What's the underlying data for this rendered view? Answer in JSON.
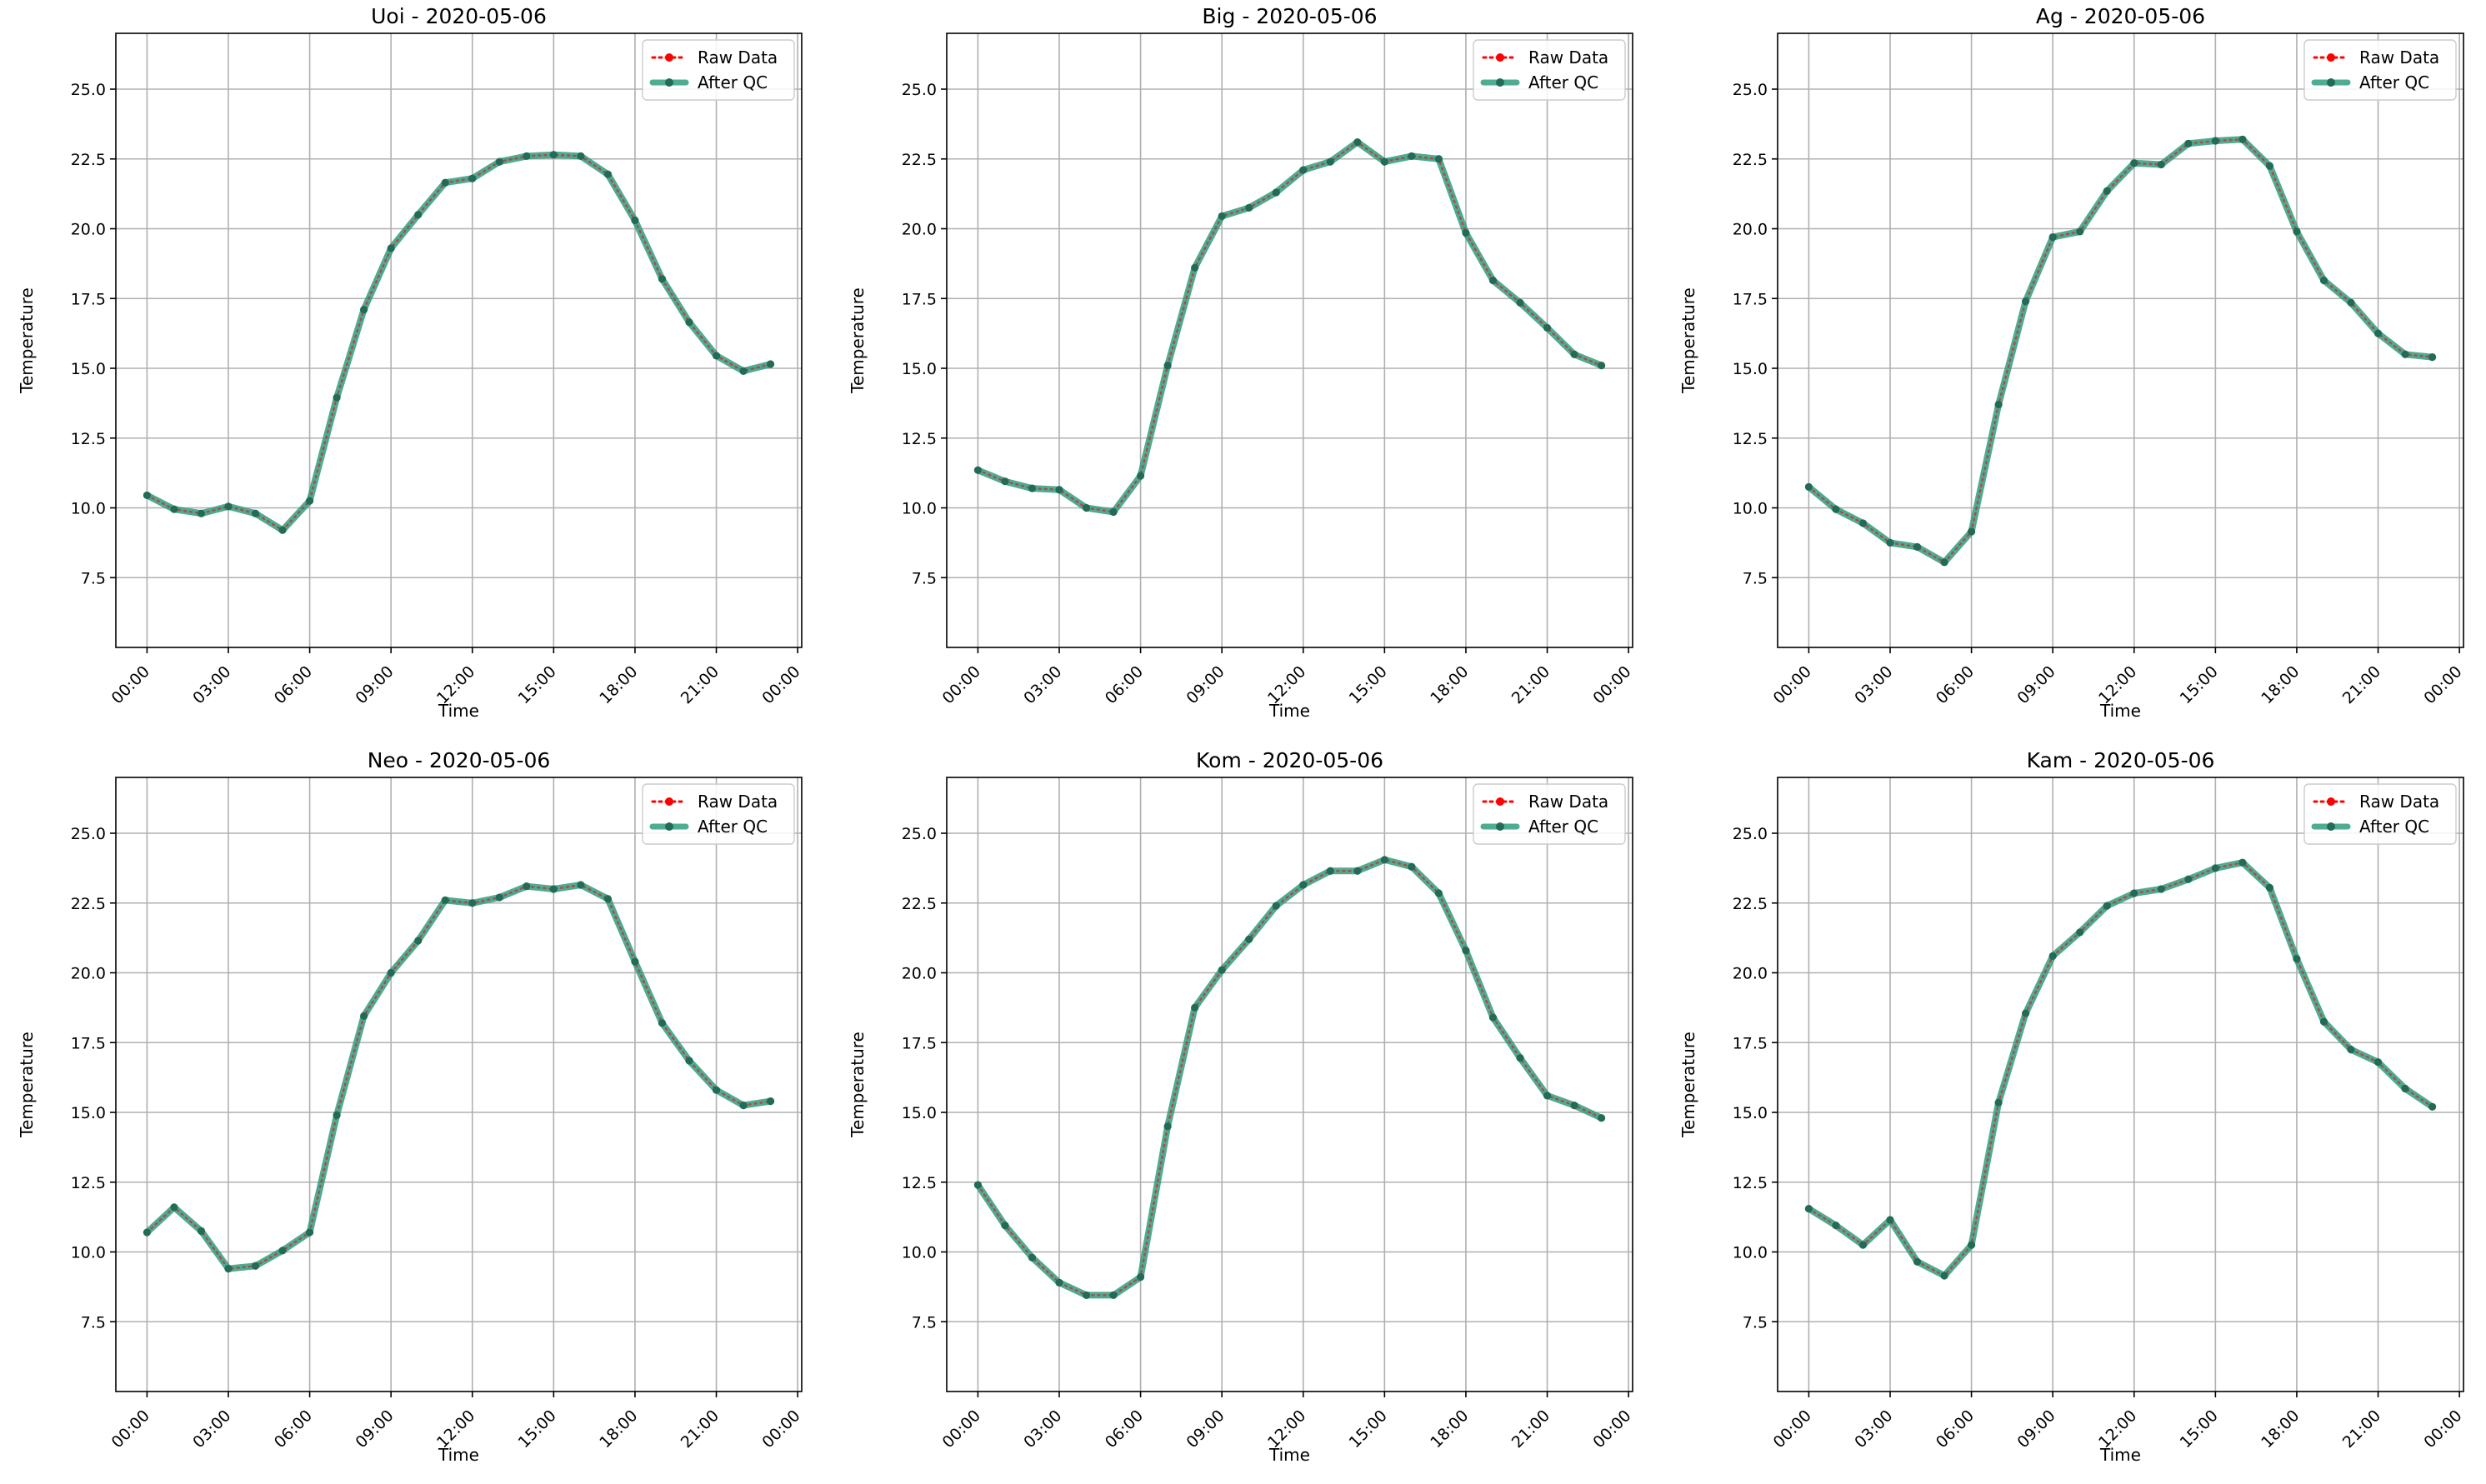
{
  "colors": {
    "raw": "#ff0000",
    "qc": "#2e9e80",
    "qc_marker": "#236b58",
    "grid": "#b0b0b0",
    "axes": "#000000",
    "legend_frame": "#cccccc"
  },
  "legend": {
    "raw_label": "Raw Data",
    "qc_label": "After QC"
  },
  "chart_data": [
    {
      "type": "line",
      "title": "Uoi - 2020-05-06",
      "xlabel": "Time",
      "ylabel": "Temperature",
      "x_hours": [
        0,
        1,
        2,
        3,
        4,
        5,
        6,
        7,
        8,
        9,
        10,
        11,
        12,
        13,
        14,
        15,
        16,
        17,
        18,
        19,
        20,
        21,
        22,
        23
      ],
      "xlim": [
        -1.15,
        24.15
      ],
      "ylim": [
        5.0,
        27.0
      ],
      "xticks": [
        "00:00",
        "03:00",
        "06:00",
        "09:00",
        "12:00",
        "15:00",
        "18:00",
        "21:00",
        "00:00"
      ],
      "yticks": [
        "7.5",
        "10.0",
        "12.5",
        "15.0",
        "17.5",
        "20.0",
        "22.5",
        "25.0"
      ],
      "grid": true,
      "legend_position": "upper right",
      "series": [
        {
          "name": "Raw Data",
          "values": [
            10.45,
            9.95,
            9.8,
            10.05,
            9.8,
            9.2,
            10.25,
            13.95,
            17.1,
            19.3,
            20.5,
            21.65,
            21.8,
            22.4,
            22.6,
            22.65,
            22.6,
            21.95,
            20.3,
            18.2,
            16.65,
            15.45,
            14.9,
            15.15
          ]
        },
        {
          "name": "After QC",
          "values": [
            10.45,
            9.95,
            9.8,
            10.05,
            9.8,
            9.2,
            10.25,
            13.95,
            17.1,
            19.3,
            20.5,
            21.65,
            21.8,
            22.4,
            22.6,
            22.65,
            22.6,
            21.95,
            20.3,
            18.2,
            16.65,
            15.45,
            14.9,
            15.15
          ]
        }
      ]
    },
    {
      "type": "line",
      "title": "Big - 2020-05-06",
      "xlabel": "Time",
      "ylabel": "Temperature",
      "x_hours": [
        0,
        1,
        2,
        3,
        4,
        5,
        6,
        7,
        8,
        9,
        10,
        11,
        12,
        13,
        14,
        15,
        16,
        17,
        18,
        19,
        20,
        21,
        22,
        23
      ],
      "xlim": [
        -1.15,
        24.15
      ],
      "ylim": [
        5.0,
        27.0
      ],
      "xticks": [
        "00:00",
        "03:00",
        "06:00",
        "09:00",
        "12:00",
        "15:00",
        "18:00",
        "21:00",
        "00:00"
      ],
      "yticks": [
        "7.5",
        "10.0",
        "12.5",
        "15.0",
        "17.5",
        "20.0",
        "22.5",
        "25.0"
      ],
      "grid": true,
      "legend_position": "upper right",
      "series": [
        {
          "name": "Raw Data",
          "values": [
            11.35,
            10.95,
            10.7,
            10.65,
            10.0,
            9.85,
            11.15,
            15.1,
            18.6,
            20.45,
            20.75,
            21.3,
            22.1,
            22.4,
            23.1,
            22.4,
            22.6,
            22.5,
            19.85,
            18.15,
            17.35,
            16.45,
            15.5,
            15.1
          ]
        },
        {
          "name": "After QC",
          "values": [
            11.35,
            10.95,
            10.7,
            10.65,
            10.0,
            9.85,
            11.15,
            15.1,
            18.6,
            20.45,
            20.75,
            21.3,
            22.1,
            22.4,
            23.1,
            22.4,
            22.6,
            22.5,
            19.85,
            18.15,
            17.35,
            16.45,
            15.5,
            15.1
          ]
        }
      ]
    },
    {
      "type": "line",
      "title": "Ag - 2020-05-06",
      "xlabel": "Time",
      "ylabel": "Temperature",
      "x_hours": [
        0,
        1,
        2,
        3,
        4,
        5,
        6,
        7,
        8,
        9,
        10,
        11,
        12,
        13,
        14,
        15,
        16,
        17,
        18,
        19,
        20,
        21,
        22,
        23
      ],
      "xlim": [
        -1.15,
        24.15
      ],
      "ylim": [
        5.0,
        27.0
      ],
      "xticks": [
        "00:00",
        "03:00",
        "06:00",
        "09:00",
        "12:00",
        "15:00",
        "18:00",
        "21:00",
        "00:00"
      ],
      "yticks": [
        "7.5",
        "10.0",
        "12.5",
        "15.0",
        "17.5",
        "20.0",
        "22.5",
        "25.0"
      ],
      "grid": true,
      "legend_position": "upper right",
      "series": [
        {
          "name": "Raw Data",
          "values": [
            10.75,
            9.95,
            9.45,
            8.75,
            8.6,
            8.05,
            9.15,
            13.7,
            17.4,
            19.7,
            19.9,
            21.35,
            22.35,
            22.3,
            23.05,
            23.15,
            23.2,
            22.25,
            19.9,
            18.15,
            17.35,
            16.25,
            15.5,
            15.4
          ]
        },
        {
          "name": "After QC",
          "values": [
            10.75,
            9.95,
            9.45,
            8.75,
            8.6,
            8.05,
            9.15,
            13.7,
            17.4,
            19.7,
            19.9,
            21.35,
            22.35,
            22.3,
            23.05,
            23.15,
            23.2,
            22.25,
            19.9,
            18.15,
            17.35,
            16.25,
            15.5,
            15.4
          ]
        }
      ]
    },
    {
      "type": "line",
      "title": "Neo - 2020-05-06",
      "xlabel": "Time",
      "ylabel": "Temperature",
      "x_hours": [
        0,
        1,
        2,
        3,
        4,
        5,
        6,
        7,
        8,
        9,
        10,
        11,
        12,
        13,
        14,
        15,
        16,
        17,
        18,
        19,
        20,
        21,
        22,
        23
      ],
      "xlim": [
        -1.15,
        24.15
      ],
      "ylim": [
        5.0,
        27.0
      ],
      "xticks": [
        "00:00",
        "03:00",
        "06:00",
        "09:00",
        "12:00",
        "15:00",
        "18:00",
        "21:00",
        "00:00"
      ],
      "yticks": [
        "7.5",
        "10.0",
        "12.5",
        "15.0",
        "17.5",
        "20.0",
        "22.5",
        "25.0"
      ],
      "grid": true,
      "legend_position": "upper right",
      "series": [
        {
          "name": "Raw Data",
          "values": [
            10.7,
            11.6,
            10.75,
            9.4,
            9.5,
            10.05,
            10.7,
            14.9,
            18.45,
            20.0,
            21.15,
            22.6,
            22.5,
            22.7,
            23.1,
            23.0,
            23.15,
            22.65,
            20.4,
            18.2,
            16.85,
            15.8,
            15.25,
            15.4
          ]
        },
        {
          "name": "After QC",
          "values": [
            10.7,
            11.6,
            10.75,
            9.4,
            9.5,
            10.05,
            10.7,
            14.9,
            18.45,
            20.0,
            21.15,
            22.6,
            22.5,
            22.7,
            23.1,
            23.0,
            23.15,
            22.65,
            20.4,
            18.2,
            16.85,
            15.8,
            15.25,
            15.4
          ]
        }
      ]
    },
    {
      "type": "line",
      "title": "Kom - 2020-05-06",
      "xlabel": "Time",
      "ylabel": "Temperature",
      "x_hours": [
        0,
        1,
        2,
        3,
        4,
        5,
        6,
        7,
        8,
        9,
        10,
        11,
        12,
        13,
        14,
        15,
        16,
        17,
        18,
        19,
        20,
        21,
        22,
        23
      ],
      "xlim": [
        -1.15,
        24.15
      ],
      "ylim": [
        5.0,
        27.0
      ],
      "xticks": [
        "00:00",
        "03:00",
        "06:00",
        "09:00",
        "12:00",
        "15:00",
        "18:00",
        "21:00",
        "00:00"
      ],
      "yticks": [
        "7.5",
        "10.0",
        "12.5",
        "15.0",
        "17.5",
        "20.0",
        "22.5",
        "25.0"
      ],
      "grid": true,
      "legend_position": "upper right",
      "series": [
        {
          "name": "Raw Data",
          "values": [
            12.4,
            10.95,
            9.8,
            8.9,
            8.45,
            8.45,
            9.1,
            14.5,
            18.75,
            20.1,
            21.2,
            22.4,
            23.15,
            23.65,
            23.65,
            24.05,
            23.8,
            22.85,
            20.8,
            18.4,
            16.95,
            15.6,
            15.25,
            14.8
          ]
        },
        {
          "name": "After QC",
          "values": [
            12.4,
            10.95,
            9.8,
            8.9,
            8.45,
            8.45,
            9.1,
            14.5,
            18.75,
            20.1,
            21.2,
            22.4,
            23.15,
            23.65,
            23.65,
            24.05,
            23.8,
            22.85,
            20.8,
            18.4,
            16.95,
            15.6,
            15.25,
            14.8
          ]
        }
      ]
    },
    {
      "type": "line",
      "title": "Kam - 2020-05-06",
      "xlabel": "Time",
      "ylabel": "Temperature",
      "x_hours": [
        0,
        1,
        2,
        3,
        4,
        5,
        6,
        7,
        8,
        9,
        10,
        11,
        12,
        13,
        14,
        15,
        16,
        17,
        18,
        19,
        20,
        21,
        22,
        23
      ],
      "xlim": [
        -1.15,
        24.15
      ],
      "ylim": [
        5.0,
        27.0
      ],
      "xticks": [
        "00:00",
        "03:00",
        "06:00",
        "09:00",
        "12:00",
        "15:00",
        "18:00",
        "21:00",
        "00:00"
      ],
      "yticks": [
        "7.5",
        "10.0",
        "12.5",
        "15.0",
        "17.5",
        "20.0",
        "22.5",
        "25.0"
      ],
      "grid": true,
      "legend_position": "upper right",
      "series": [
        {
          "name": "Raw Data",
          "values": [
            11.55,
            10.95,
            10.25,
            11.15,
            9.65,
            9.15,
            10.25,
            15.35,
            18.55,
            20.6,
            21.45,
            22.4,
            22.85,
            23.0,
            23.35,
            23.75,
            23.95,
            23.05,
            20.5,
            18.25,
            17.25,
            16.8,
            15.85,
            15.2
          ]
        },
        {
          "name": "After QC",
          "values": [
            11.55,
            10.95,
            10.25,
            11.15,
            9.65,
            9.15,
            10.25,
            15.35,
            18.55,
            20.6,
            21.45,
            22.4,
            22.85,
            23.0,
            23.35,
            23.75,
            23.95,
            23.05,
            20.5,
            18.25,
            17.25,
            16.8,
            15.85,
            15.2
          ]
        }
      ]
    }
  ]
}
